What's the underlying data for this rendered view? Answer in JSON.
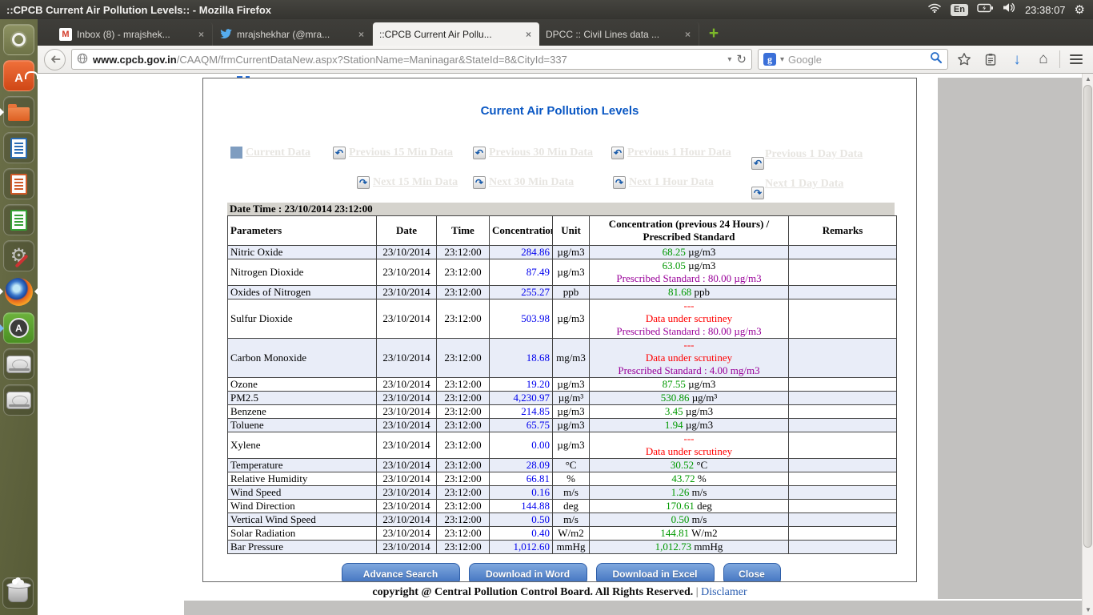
{
  "desktop": {
    "window_title": "::CPCB Current Air Pollution Levels:: - Mozilla Firefox",
    "tray": {
      "keyboard_layout": "En",
      "clock": "23:38:07",
      "icons": [
        "wifi-icon",
        "keyboard-layout-badge",
        "battery-icon",
        "volume-icon",
        "clock",
        "session-gear-icon"
      ]
    }
  },
  "launcher": {
    "items": [
      "dash-home",
      "ubuntu-software-center",
      "files",
      "libreoffice-writer",
      "libreoffice-impress",
      "libreoffice-calc",
      "system-settings",
      "firefox",
      "software-updater",
      "disk-drive-1",
      "disk-drive-2",
      "trash"
    ]
  },
  "browser": {
    "tabs": [
      {
        "id": "inbox",
        "label": "Inbox (8) - mrajshek...",
        "icon": "gmail",
        "active": false
      },
      {
        "id": "twitter",
        "label": "mrajshekhar (@mra...",
        "icon": "twitter",
        "active": false
      },
      {
        "id": "cpcb",
        "label": "::CPCB Current Air Pollu...",
        "icon": "none",
        "active": true
      },
      {
        "id": "dpcc",
        "label": "DPCC :: Civil Lines data ...",
        "icon": "none",
        "active": false
      }
    ],
    "tab_close_glyph": "×",
    "new_tab_label": "+",
    "url": {
      "domain": "www.cpcb.gov.in",
      "path": "/CAAQM/frmCurrentDataNew.aspx?StationName=Maninagar&StateId=8&CityId=337"
    },
    "search": {
      "engine_initial": "g",
      "placeholder": "Google"
    }
  },
  "page": {
    "title": "Current Air Pollution Levels",
    "nav": {
      "icons": {
        "prev": "↶",
        "next": "↷"
      },
      "row1": [
        {
          "label": "Current Data",
          "icon": "square"
        },
        {
          "label": "Previous 15 Min Data",
          "icon": "prev"
        },
        {
          "label": "Previous 30 Min Data",
          "icon": "prev"
        },
        {
          "label": "Previous 1 Hour Data",
          "icon": "prev"
        },
        {
          "label": "Previous 1 Day Data",
          "icon": "prev",
          "icon_below": true
        }
      ],
      "row2": [
        {
          "label": "Next 15 Min Data",
          "icon": "next"
        },
        {
          "label": "Next 30 Min Data",
          "icon": "next"
        },
        {
          "label": "Next 1 Hour Data",
          "icon": "next"
        },
        {
          "label": "Next 1 Day Data",
          "icon": "next",
          "icon_below": true
        }
      ]
    },
    "datetime_label": "Date Time : 23/10/2014 23:12:00",
    "table": {
      "headers": [
        "Parameters",
        "Date",
        "Time",
        "Concentration",
        "Unit",
        "Concentration (previous 24 Hours) / Prescribed Standard",
        "Remarks"
      ],
      "rows": [
        {
          "parameter": "Nitric Oxide",
          "date": "23/10/2014",
          "time": "23:12:00",
          "concentration": "284.86",
          "unit": "µg/m3",
          "prev24": [
            {
              "v": "68.25",
              "u": "µg/m3"
            }
          ],
          "remarks": ""
        },
        {
          "parameter": "Nitrogen Dioxide",
          "date": "23/10/2014",
          "time": "23:12:00",
          "concentration": "87.49",
          "unit": "µg/m3",
          "prev24": [
            {
              "v": "63.05",
              "u": "µg/m3"
            },
            {
              "t": "Prescribed Standard : 80.00 µg/m3",
              "c": "purple"
            }
          ],
          "remarks": ""
        },
        {
          "parameter": "Oxides of Nitrogen",
          "date": "23/10/2014",
          "time": "23:12:00",
          "concentration": "255.27",
          "unit": "ppb",
          "prev24": [
            {
              "v": "81.68",
              "u": "ppb"
            }
          ],
          "remarks": ""
        },
        {
          "parameter": "Sulfur Dioxide",
          "date": "23/10/2014",
          "time": "23:12:00",
          "concentration": "503.98",
          "unit": "µg/m3",
          "prev24": [
            {
              "t": "---",
              "c": "red"
            },
            {
              "t": "Data under scrutiney",
              "c": "red"
            },
            {
              "t": "Prescribed Standard : 80.00 µg/m3",
              "c": "purple"
            }
          ],
          "remarks": ""
        },
        {
          "parameter": "Carbon Monoxide",
          "date": "23/10/2014",
          "time": "23:12:00",
          "concentration": "18.68",
          "unit": "mg/m3",
          "prev24": [
            {
              "t": "---",
              "c": "red"
            },
            {
              "t": "Data under scrutiney",
              "c": "red"
            },
            {
              "t": "Prescribed Standard : 4.00 mg/m3",
              "c": "purple"
            }
          ],
          "remarks": ""
        },
        {
          "parameter": "Ozone",
          "date": "23/10/2014",
          "time": "23:12:00",
          "concentration": "19.20",
          "unit": "µg/m3",
          "prev24": [
            {
              "v": "87.55",
              "u": "µg/m3"
            }
          ],
          "remarks": ""
        },
        {
          "parameter": "PM2.5",
          "date": "23/10/2014",
          "time": "23:12:00",
          "concentration": "4,230.97",
          "unit": "µg/m³",
          "prev24": [
            {
              "v": "530.86",
              "u": "µg/m³"
            }
          ],
          "remarks": ""
        },
        {
          "parameter": "Benzene",
          "date": "23/10/2014",
          "time": "23:12:00",
          "concentration": "214.85",
          "unit": "µg/m3",
          "prev24": [
            {
              "v": "3.45",
              "u": "µg/m3"
            }
          ],
          "remarks": ""
        },
        {
          "parameter": "Toluene",
          "date": "23/10/2014",
          "time": "23:12:00",
          "concentration": "65.75",
          "unit": "µg/m3",
          "prev24": [
            {
              "v": "1.94",
              "u": "µg/m3"
            }
          ],
          "remarks": ""
        },
        {
          "parameter": "Xylene",
          "date": "23/10/2014",
          "time": "23:12:00",
          "concentration": "0.00",
          "unit": "µg/m3",
          "prev24": [
            {
              "t": "---",
              "c": "red"
            },
            {
              "t": "Data under scrutiney",
              "c": "red"
            }
          ],
          "remarks": ""
        },
        {
          "parameter": "Temperature",
          "date": "23/10/2014",
          "time": "23:12:00",
          "concentration": "28.09",
          "unit": "°C",
          "prev24": [
            {
              "v": "30.52",
              "u": "°C"
            }
          ],
          "remarks": ""
        },
        {
          "parameter": "Relative Humidity",
          "date": "23/10/2014",
          "time": "23:12:00",
          "concentration": "66.81",
          "unit": "%",
          "prev24": [
            {
              "v": "43.72",
              "u": "%"
            }
          ],
          "remarks": ""
        },
        {
          "parameter": "Wind Speed",
          "date": "23/10/2014",
          "time": "23:12:00",
          "concentration": "0.16",
          "unit": "m/s",
          "prev24": [
            {
              "v": "1.26",
              "u": "m/s"
            }
          ],
          "remarks": ""
        },
        {
          "parameter": "Wind Direction",
          "date": "23/10/2014",
          "time": "23:12:00",
          "concentration": "144.88",
          "unit": "deg",
          "prev24": [
            {
              "v": "170.61",
              "u": "deg"
            }
          ],
          "remarks": ""
        },
        {
          "parameter": "Vertical Wind Speed",
          "date": "23/10/2014",
          "time": "23:12:00",
          "concentration": "0.50",
          "unit": "m/s",
          "prev24": [
            {
              "v": "0.50",
              "u": "m/s"
            }
          ],
          "remarks": ""
        },
        {
          "parameter": "Solar Radiation",
          "date": "23/10/2014",
          "time": "23:12:00",
          "concentration": "0.40",
          "unit": "W/m2",
          "prev24": [
            {
              "v": "144.81",
              "u": "W/m2"
            }
          ],
          "remarks": ""
        },
        {
          "parameter": "Bar Pressure",
          "date": "23/10/2014",
          "time": "23:12:00",
          "concentration": "1,012.60",
          "unit": "mmHg",
          "prev24": [
            {
              "v": "1,012.73",
              "u": "mmHg"
            }
          ],
          "remarks": ""
        }
      ]
    },
    "buttons": [
      "Advance Search",
      "Download in Word",
      "Download in Excel",
      "Close"
    ],
    "footer": {
      "copyright": "copyright @ Central Pollution Control Board. All Rights Reserved.",
      "separator": "|",
      "disclaimer_link": "Disclamer"
    },
    "colors": {
      "title_blue": "#0b58c4",
      "value_blue": "#0000ee",
      "value_green": "#009900",
      "alert_red": "#ff0000",
      "standard_purple": "#990099",
      "alt_row": "#e9edf8",
      "nav_link": "#e7e5e1",
      "link_blue": "#2a5db0",
      "button_top": "#7fa8de",
      "button_bottom": "#3d6fbe",
      "marker_square": "#7f9dc0",
      "datetime_bar": "#d5d3cd"
    }
  }
}
